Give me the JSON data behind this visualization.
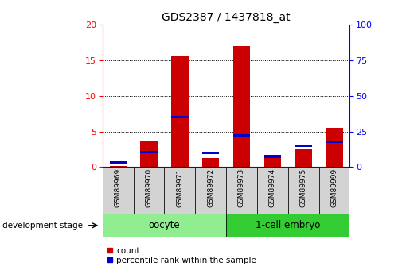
{
  "title": "GDS2387 / 1437818_at",
  "samples": [
    "GSM89969",
    "GSM89970",
    "GSM89971",
    "GSM89972",
    "GSM89973",
    "GSM89974",
    "GSM89975",
    "GSM89999"
  ],
  "count_values": [
    0.15,
    3.7,
    15.5,
    1.3,
    17.0,
    1.6,
    2.5,
    5.5
  ],
  "percentile_values": [
    3.5,
    10.5,
    35.0,
    10.0,
    22.5,
    7.5,
    15.0,
    18.0
  ],
  "groups": [
    {
      "label": "oocyte",
      "start": 0,
      "end": 3,
      "color": "#90EE90"
    },
    {
      "label": "1-cell embryo",
      "start": 4,
      "end": 7,
      "color": "#33CC33"
    }
  ],
  "ylim_left": [
    0,
    20
  ],
  "ylim_right": [
    0,
    100
  ],
  "yticks_left": [
    0,
    5,
    10,
    15,
    20
  ],
  "yticks_right": [
    0,
    25,
    50,
    75,
    100
  ],
  "bar_color_red": "#CC0000",
  "bar_color_blue": "#0000CC",
  "bg_color": "#FFFFFF",
  "sample_box_color": "#D3D3D3",
  "bar_width": 0.55,
  "legend_count_label": "count",
  "legend_percentile_label": "percentile rank within the sample",
  "dev_stage_label": "development stage"
}
